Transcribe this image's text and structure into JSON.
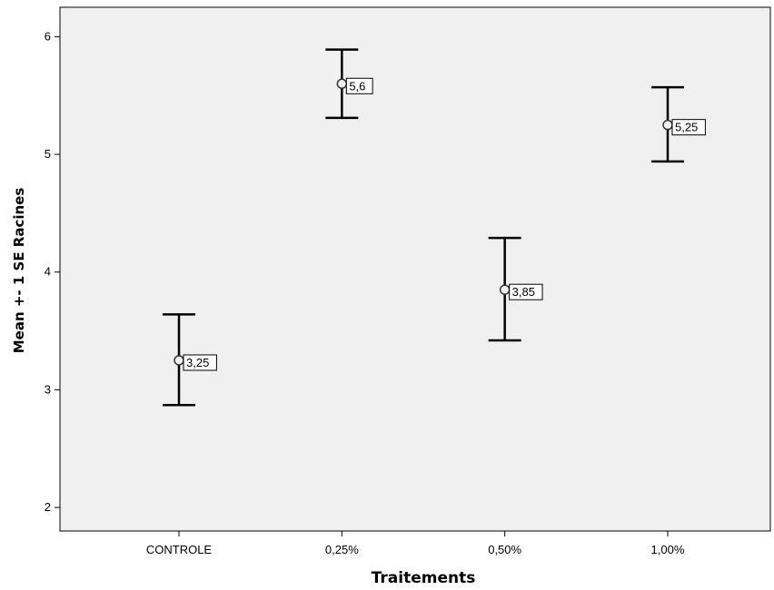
{
  "chart_data": {
    "type": "scatter",
    "categories": [
      "CONTROLE",
      "0,25%",
      "0,50%",
      "1,00%"
    ],
    "series": [
      {
        "values": [
          3.25,
          5.6,
          3.85,
          5.25
        ],
        "error_low": [
          2.87,
          5.31,
          3.42,
          4.94
        ],
        "error_high": [
          3.64,
          5.89,
          4.29,
          5.57
        ],
        "data_labels": [
          "3,25",
          "5,6",
          "3,85",
          "5,25"
        ]
      }
    ],
    "xlabel": "Traitements",
    "ylabel": "Mean +- 1 SE Racines",
    "ylim": [
      1.8,
      6.25
    ],
    "yticks": [
      2,
      3,
      4,
      5,
      6
    ],
    "grid": false,
    "colors": {
      "plot_background": "#f0f0f0",
      "marks": "#000000",
      "marker_edge": "#333333"
    }
  }
}
